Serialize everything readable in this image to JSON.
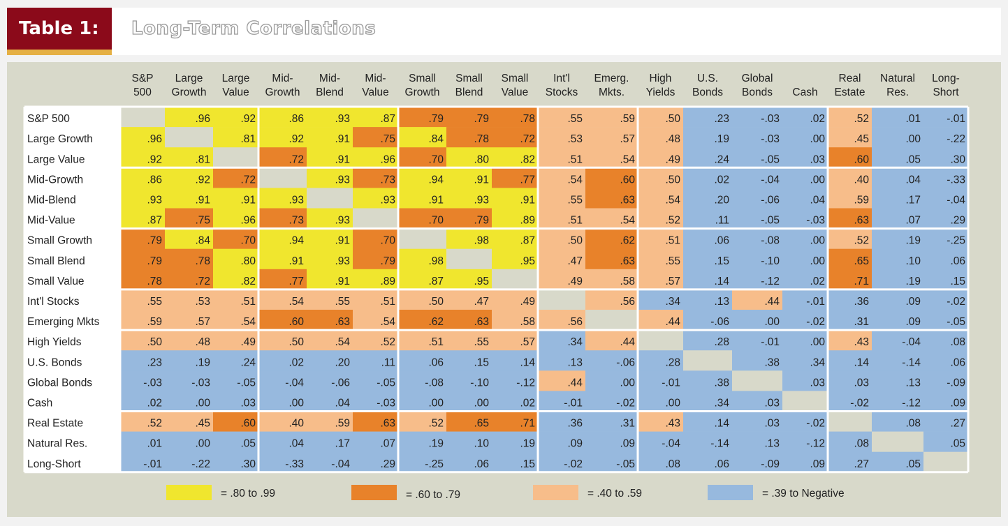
{
  "header": {
    "table_label": "Table 1:",
    "title": "Long-Term Correlations"
  },
  "colors": {
    "very_high": "#f0e62e",
    "high": "#e8822a",
    "medium": "#f7bd8a",
    "low": "#97b9de",
    "self": "#d8d9ca",
    "title_box": "#8b0a1a",
    "title_accent": "#e5b044"
  },
  "chart_data": {
    "type": "heatmap",
    "title": "Long-Term Correlations",
    "columns": [
      [
        "S&P",
        "500"
      ],
      [
        "Large",
        "Growth"
      ],
      [
        "Large",
        "Value"
      ],
      [
        "Mid-",
        "Growth"
      ],
      [
        "Mid-",
        "Blend"
      ],
      [
        "Mid-",
        "Value"
      ],
      [
        "Small",
        "Growth"
      ],
      [
        "Small",
        "Blend"
      ],
      [
        "Small",
        "Value"
      ],
      [
        "Int'l",
        "Stocks"
      ],
      [
        "Emerg.",
        "Mkts."
      ],
      [
        "High",
        "Yields"
      ],
      [
        "U.S.",
        "Bonds"
      ],
      [
        "Global",
        "Bonds"
      ],
      [
        "",
        "Cash"
      ],
      [
        "Real",
        "Estate"
      ],
      [
        "Natural",
        "Res."
      ],
      [
        "Long-",
        "Short"
      ]
    ],
    "rows": [
      "S&P 500",
      "Large Growth",
      "Large Value",
      "Mid-Growth",
      "Mid-Blend",
      "Mid-Value",
      "Small Growth",
      "Small Blend",
      "Small Value",
      "Int'l Stocks",
      "Emerging Mkts",
      "High Yields",
      "U.S. Bonds",
      "Global Bonds",
      "Cash",
      "Real Estate",
      "Natural Res.",
      "Long-Short"
    ],
    "values": [
      [
        "",
        ".96",
        ".92",
        ".86",
        ".93",
        ".87",
        ".79",
        ".79",
        ".78",
        ".55",
        ".59",
        ".50",
        ".23",
        "-.03",
        ".02",
        ".52",
        ".01",
        "-.01"
      ],
      [
        ".96",
        "",
        ".81",
        ".92",
        ".91",
        ".75",
        ".84",
        ".78",
        ".72",
        ".53",
        ".57",
        ".48",
        ".19",
        "-.03",
        ".00",
        ".45",
        ".00",
        "-.22"
      ],
      [
        ".92",
        ".81",
        "",
        ".72",
        ".91",
        ".96",
        ".70",
        ".80",
        ".82",
        ".51",
        ".54",
        ".49",
        ".24",
        "-.05",
        ".03",
        ".60",
        ".05",
        ".30"
      ],
      [
        ".86",
        ".92",
        ".72",
        "",
        ".93",
        ".73",
        ".94",
        ".91",
        ".77",
        ".54",
        ".60",
        ".50",
        ".02",
        "-.04",
        ".00",
        ".40",
        ".04",
        "-.33"
      ],
      [
        ".93",
        ".91",
        ".91",
        ".93",
        "",
        ".93",
        ".91",
        ".93",
        ".91",
        ".55",
        ".63",
        ".54",
        ".20",
        "-.06",
        ".04",
        ".59",
        ".17",
        "-.04"
      ],
      [
        ".87",
        ".75",
        ".96",
        ".73",
        ".93",
        "",
        ".70",
        ".79",
        ".89",
        ".51",
        ".54",
        ".52",
        ".11",
        "-.05",
        "-.03",
        ".63",
        ".07",
        ".29"
      ],
      [
        ".79",
        ".84",
        ".70",
        ".94",
        ".91",
        ".70",
        "",
        ".98",
        ".87",
        ".50",
        ".62",
        ".51",
        ".06",
        "-.08",
        ".00",
        ".52",
        ".19",
        "-.25"
      ],
      [
        ".79",
        ".78",
        ".80",
        ".91",
        ".93",
        ".79",
        ".98",
        "",
        ".95",
        ".47",
        ".63",
        ".55",
        ".15",
        "-.10",
        ".00",
        ".65",
        ".10",
        ".06"
      ],
      [
        ".78",
        ".72",
        ".82",
        ".77",
        ".91",
        ".89",
        ".87",
        ".95",
        "",
        ".49",
        ".58",
        ".57",
        ".14",
        "-.12",
        ".02",
        ".71",
        ".19",
        ".15"
      ],
      [
        ".55",
        ".53",
        ".51",
        ".54",
        ".55",
        ".51",
        ".50",
        ".47",
        ".49",
        "",
        ".56",
        ".34",
        ".13",
        ".44",
        "-.01",
        ".36",
        ".09",
        "-.02"
      ],
      [
        ".59",
        ".57",
        ".54",
        ".60",
        ".63",
        ".54",
        ".62",
        ".63",
        ".58",
        ".56",
        "",
        ".44",
        "-.06",
        ".00",
        "-.02",
        ".31",
        ".09",
        "-.05"
      ],
      [
        ".50",
        ".48",
        ".49",
        ".50",
        ".54",
        ".52",
        ".51",
        ".55",
        ".57",
        ".34",
        ".44",
        "",
        ".28",
        "-.01",
        ".00",
        ".43",
        "-.04",
        ".08"
      ],
      [
        ".23",
        ".19",
        ".24",
        ".02",
        ".20",
        ".11",
        ".06",
        ".15",
        ".14",
        ".13",
        "-.06",
        ".28",
        "",
        ".38",
        ".34",
        ".14",
        "-.14",
        ".06"
      ],
      [
        "-.03",
        "-.03",
        "-.05",
        "-.04",
        "-.06",
        "-.05",
        "-.08",
        "-.10",
        "-.12",
        ".44",
        ".00",
        "-.01",
        ".38",
        "",
        ".03",
        ".03",
        ".13",
        "-.09"
      ],
      [
        ".02",
        ".00",
        ".03",
        ".00",
        ".04",
        "-.03",
        ".00",
        ".00",
        ".02",
        "-.01",
        "-.02",
        ".00",
        ".34",
        ".03",
        "",
        "-.02",
        "-.12",
        ".09"
      ],
      [
        ".52",
        ".45",
        ".60",
        ".40",
        ".59",
        ".63",
        ".52",
        ".65",
        ".71",
        ".36",
        ".31",
        ".43",
        ".14",
        ".03",
        "-.02",
        "",
        ".08",
        ".27"
      ],
      [
        ".01",
        ".00",
        ".05",
        ".04",
        ".17",
        ".07",
        ".19",
        ".10",
        ".19",
        ".09",
        ".09",
        "-.04",
        "-.14",
        ".13",
        "-.12",
        ".08",
        "",
        ".05"
      ],
      [
        "-.01",
        "-.22",
        ".30",
        "-.33",
        "-.04",
        ".29",
        "-.25",
        ".06",
        ".15",
        "-.02",
        "-.05",
        ".08",
        ".06",
        "-.09",
        ".09",
        ".27",
        ".05",
        ""
      ]
    ],
    "legend": [
      {
        "label": "= .80 to .99",
        "color_key": "very_high"
      },
      {
        "label": "= .60 to .79",
        "color_key": "high"
      },
      {
        "label": "= .40 to .59",
        "color_key": "medium"
      },
      {
        "label": "= .39 to Negative",
        "color_key": "low"
      }
    ]
  }
}
